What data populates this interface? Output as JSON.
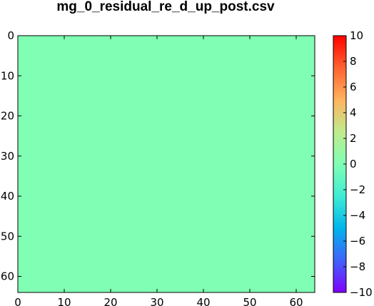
{
  "chart_data": {
    "type": "heatmap",
    "title": "mg_0_residual_re_d_up_post.csv",
    "xlabel": "",
    "ylabel": "",
    "x_range": [
      0,
      64
    ],
    "y_range": [
      0,
      64
    ],
    "y_inverted": true,
    "x_ticks": [
      "0",
      "10",
      "20",
      "30",
      "40",
      "50",
      "60"
    ],
    "y_ticks": [
      "0",
      "10",
      "20",
      "30",
      "40",
      "50",
      "60"
    ],
    "grid_value": 0,
    "grid_size": [
      64,
      64
    ],
    "colormap": "rainbow",
    "colorbar": {
      "vmin": -10,
      "vmax": 10,
      "ticks": [
        "10",
        "8",
        "6",
        "4",
        "2",
        "0",
        "−2",
        "−4",
        "−6",
        "−8",
        "−10"
      ]
    },
    "grid": false,
    "colors": {
      "fill": "#80ffb4"
    }
  }
}
